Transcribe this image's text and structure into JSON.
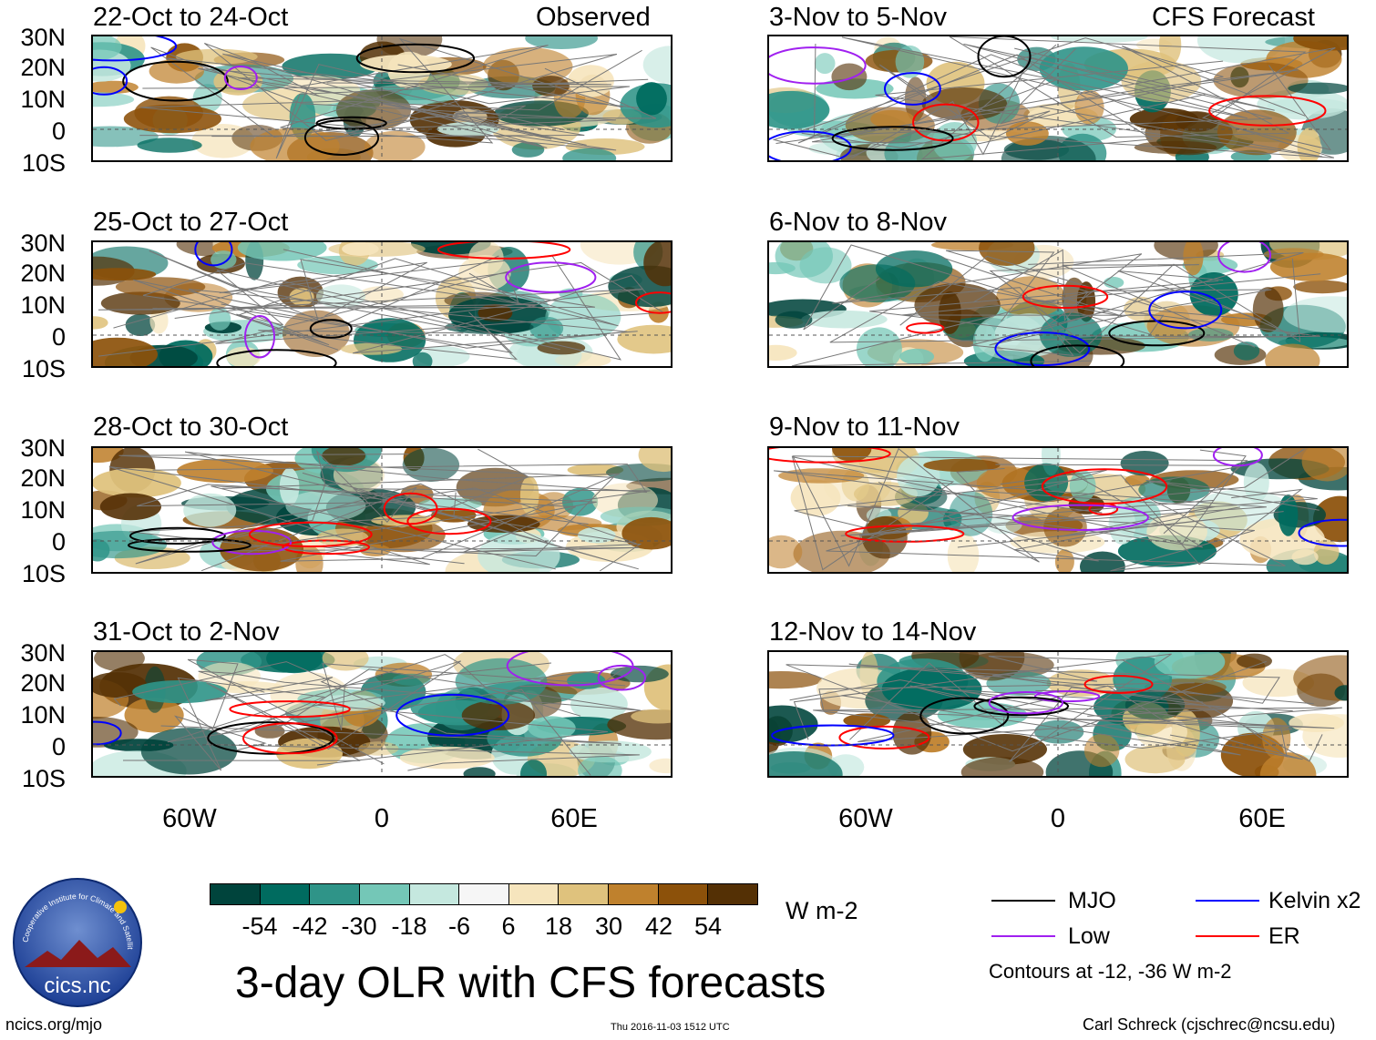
{
  "headers": {
    "observed": "Observed",
    "forecast": "CFS Forecast"
  },
  "panels_left": [
    {
      "title": "22-Oct to 24-Oct"
    },
    {
      "title": "25-Oct to 27-Oct"
    },
    {
      "title": "28-Oct to 30-Oct"
    },
    {
      "title": "31-Oct to 2-Nov"
    }
  ],
  "panels_right": [
    {
      "title": "3-Nov to 5-Nov"
    },
    {
      "title": "6-Nov to 8-Nov"
    },
    {
      "title": "9-Nov to 11-Nov"
    },
    {
      "title": "12-Nov to 14-Nov"
    }
  ],
  "lat_labels": [
    "30N",
    "20N",
    "10N",
    "0",
    "10S"
  ],
  "lon_labels": [
    "60W",
    "0",
    "60E"
  ],
  "colorbar": {
    "colors": [
      "#00443c",
      "#006b5f",
      "#2f9488",
      "#74c7b7",
      "#c5e8df",
      "#f6f6f6",
      "#f6e5bd",
      "#dfc27d",
      "#bf812d",
      "#8c510a",
      "#543005"
    ],
    "labels": [
      "-54",
      "-42",
      "-30",
      "-18",
      "-6",
      "6",
      "18",
      "30",
      "42",
      "54"
    ],
    "units": "W m-2"
  },
  "legend": {
    "items": [
      {
        "label": "MJO",
        "color": "#000000"
      },
      {
        "label": "Kelvin x2",
        "color": "#0000ff"
      },
      {
        "label": "Low",
        "color": "#a020f0"
      },
      {
        "label": "ER",
        "color": "#ff0000"
      }
    ],
    "note": "Contours at -12, -36 W m-2"
  },
  "title": "3-day OLR with CFS forecasts",
  "footer": {
    "url": "ncics.org/mjo",
    "timestamp": "Thu 2016-11-03 1512 UTC",
    "credit": "Carl Schreck (cjschrec@ncsu.edu)"
  },
  "logo": {
    "text": "cics.nc",
    "ring_text": "Cooperative Institute for Climate and Satellites"
  }
}
